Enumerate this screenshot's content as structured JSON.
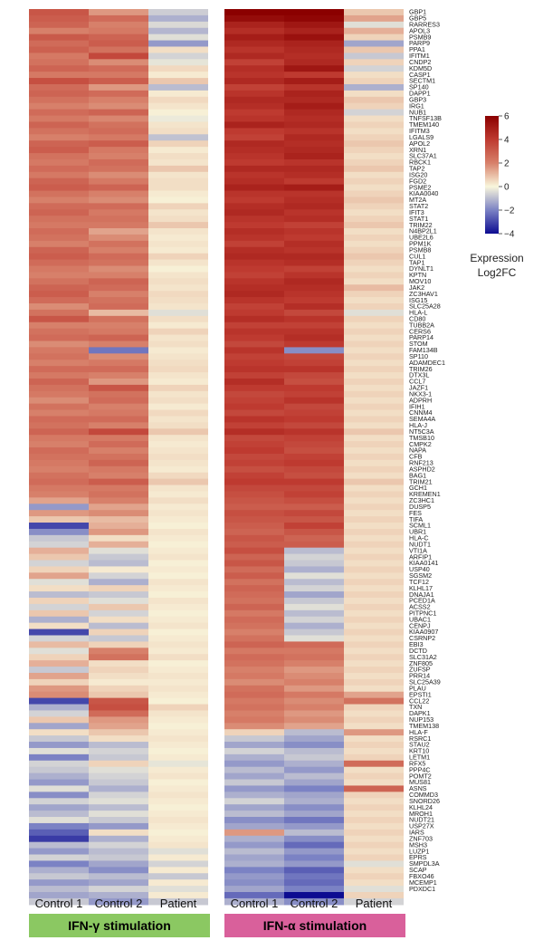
{
  "chart_data": {
    "type": "heatmap",
    "genes": [
      "GBP1",
      "GBP5",
      "RARRES3",
      "APOL3",
      "PSMB9",
      "PARP9",
      "PPA1",
      "IFITM1",
      "CNDP2",
      "KDM5D",
      "CASP1",
      "SECTM1",
      "SP140",
      "DAPP1",
      "GBP3",
      "IRG1",
      "NUB1",
      "TNFSF13B",
      "TMEM140",
      "IFITM3",
      "LGALS9",
      "APOL2",
      "XRN1",
      "SLC37A1",
      "RBCK1",
      "TAP2",
      "ISG20",
      "FGD2",
      "PSME2",
      "KIAA0040",
      "MT2A",
      "STAT2",
      "IFIT3",
      "STAT1",
      "TRIM22",
      "N4BP2L1",
      "UBE2L6",
      "PPM1K",
      "PSMB8",
      "CUL1",
      "TAP1",
      "DYNLT1",
      "KPTN",
      "MOV10",
      "JAK2",
      "ZC3HAV1",
      "ISG15",
      "SLC25A28",
      "HLA-L",
      "CD80",
      "TUBB2A",
      "CERS6",
      "PARP14",
      "STOM",
      "FAM134B",
      "SP110",
      "ADAMDEC1",
      "TRIM26",
      "DTX3L",
      "CCL7",
      "JAZF1",
      "NKX3-1",
      "ADPRH",
      "IFIH1",
      "CNNM4",
      "SEMA4A",
      "HLA-J",
      "NT5C3A",
      "TMSB10",
      "CMPK2",
      "NAPA",
      "CFB",
      "RNF213",
      "ASPHD2",
      "BAG1",
      "TRIM21",
      "GCH1",
      "KREMEN1",
      "ZC3HC1",
      "DUSP5",
      "FES",
      "TIFA",
      "SCML1",
      "UBR1",
      "HLA-C",
      "NUDT1",
      "VTI1A",
      "ARFIP1",
      "KIAA0141",
      "USP40",
      "SGSM2",
      "TCF12",
      "KLHL17",
      "DNAJA1",
      "PCED1A",
      "ACSS2",
      "PITPNC1",
      "UBAC1",
      "CENPJ",
      "KIAA0907",
      "CSRNP2",
      "EBI3",
      "DCTD",
      "SLC31A2",
      "ZNF805",
      "ZUFSP",
      "PRR14",
      "SLC25A39",
      "PLAU",
      "EPSTI1",
      "CCL22",
      "TXN",
      "DAPK1",
      "NUP153",
      "TMEM138",
      "HLA-F",
      "RSRC1",
      "STAU2",
      "KRT10",
      "LETM1",
      "RFX5",
      "PPP4C",
      "POMT2",
      "MUS81",
      "ASNS",
      "COMMD3",
      "SNORD26",
      "KLHL24",
      "MROH1",
      "NUDT21",
      "USP27X",
      "IARS",
      "ZNF703",
      "MSH3",
      "LUZP1",
      "EPRS",
      "SMPDL3A",
      "SCAP",
      "FBXO46",
      "MCEMP1",
      "PDXDC1"
    ],
    "groups": [
      {
        "name": "IFN-γ stimulation",
        "color": "#8bc862",
        "samples": [
          "Control 1",
          "Control 2",
          "Patient"
        ]
      },
      {
        "name": "IFN-α stimulation",
        "color": "#d9609b",
        "samples": [
          "Control 1",
          "Control 2",
          "Patient"
        ]
      }
    ],
    "values_ifn_gamma": [
      [
        3.2,
        1.6,
        -0.7
      ],
      [
        3.0,
        2.6,
        -1.2
      ],
      [
        2.8,
        2.0,
        -0.5
      ],
      [
        2.0,
        2.2,
        -1.1
      ],
      [
        3.1,
        2.8,
        -0.4
      ],
      [
        2.6,
        3.0,
        -1.6
      ],
      [
        2.9,
        2.4,
        0.4
      ],
      [
        2.2,
        3.6,
        -0.6
      ],
      [
        2.4,
        1.8,
        -0.3
      ],
      [
        2.8,
        2.6,
        0.5
      ],
      [
        2.2,
        2.2,
        0.2
      ],
      [
        3.4,
        3.0,
        0.8
      ],
      [
        2.6,
        1.6,
        -1.0
      ],
      [
        2.8,
        2.6,
        0.2
      ],
      [
        2.4,
        2.0,
        0.5
      ],
      [
        2.0,
        1.8,
        0.3
      ],
      [
        2.6,
        2.8,
        0.1
      ],
      [
        2.2,
        1.9,
        -0.2
      ],
      [
        2.8,
        2.4,
        0.3
      ],
      [
        2.4,
        2.6,
        0.4
      ],
      [
        2.0,
        2.2,
        -0.9
      ],
      [
        2.8,
        3.0,
        0.6
      ],
      [
        3.0,
        2.2,
        0.2
      ],
      [
        2.4,
        2.0,
        0.4
      ],
      [
        2.2,
        2.6,
        0.3
      ],
      [
        2.6,
        2.4,
        0.8
      ],
      [
        2.2,
        1.8,
        0.3
      ],
      [
        2.8,
        2.2,
        0.4
      ],
      [
        3.0,
        2.8,
        0.4
      ],
      [
        2.4,
        2.0,
        0.2
      ],
      [
        2.0,
        1.8,
        0.1
      ],
      [
        2.6,
        2.6,
        0.6
      ],
      [
        2.8,
        2.2,
        0.3
      ],
      [
        2.4,
        2.4,
        0.4
      ],
      [
        2.2,
        2.2,
        0.8
      ],
      [
        2.6,
        1.4,
        0.3
      ],
      [
        2.4,
        1.8,
        0.2
      ],
      [
        2.0,
        2.4,
        0.3
      ],
      [
        2.8,
        2.0,
        0.2
      ],
      [
        3.0,
        2.6,
        0.6
      ],
      [
        2.6,
        2.4,
        0.3
      ],
      [
        2.2,
        1.8,
        0.1
      ],
      [
        2.0,
        2.0,
        0.3
      ],
      [
        2.4,
        2.8,
        0.4
      ],
      [
        2.8,
        2.6,
        0.3
      ],
      [
        3.0,
        2.0,
        0.5
      ],
      [
        2.6,
        2.4,
        0.4
      ],
      [
        1.8,
        2.6,
        0.3
      ],
      [
        2.4,
        1.0,
        -0.4
      ],
      [
        3.2,
        2.4,
        0.4
      ],
      [
        2.0,
        2.0,
        0.2
      ],
      [
        2.4,
        2.2,
        0.6
      ],
      [
        2.6,
        2.8,
        0.3
      ],
      [
        1.8,
        2.0,
        0.4
      ],
      [
        2.2,
        -2.2,
        0.2
      ],
      [
        2.4,
        1.8,
        0.3
      ],
      [
        2.0,
        2.2,
        0.4
      ],
      [
        2.6,
        2.6,
        0.5
      ],
      [
        2.2,
        2.0,
        0.3
      ],
      [
        2.8,
        1.6,
        0.2
      ],
      [
        2.4,
        3.2,
        0.6
      ],
      [
        2.2,
        2.4,
        0.3
      ],
      [
        1.8,
        2.6,
        0.4
      ],
      [
        2.4,
        2.0,
        0.2
      ],
      [
        2.0,
        2.2,
        0.5
      ],
      [
        2.6,
        2.6,
        0.3
      ],
      [
        2.4,
        2.0,
        0.4
      ],
      [
        2.8,
        3.6,
        0.8
      ],
      [
        2.2,
        2.2,
        0.3
      ],
      [
        2.0,
        2.6,
        0.2
      ],
      [
        2.6,
        2.0,
        0.3
      ],
      [
        2.4,
        2.4,
        0.4
      ],
      [
        2.2,
        2.8,
        0.3
      ],
      [
        2.0,
        2.2,
        0.2
      ],
      [
        2.4,
        2.0,
        0.5
      ],
      [
        2.6,
        3.0,
        0.8
      ],
      [
        2.2,
        2.2,
        0.3
      ],
      [
        2.0,
        2.4,
        0.2
      ],
      [
        1.4,
        2.0,
        0.4
      ],
      [
        -1.6,
        1.4,
        0.2
      ],
      [
        1.6,
        1.8,
        0.3
      ],
      [
        0.8,
        1.0,
        0.2
      ],
      [
        -3.0,
        1.2,
        0.1
      ],
      [
        -1.8,
        1.6,
        0.3
      ],
      [
        -0.8,
        0.4,
        0.2
      ],
      [
        -0.6,
        1.2,
        0.1
      ],
      [
        1.2,
        -0.4,
        0.2
      ],
      [
        0.8,
        -0.8,
        0.3
      ],
      [
        -0.6,
        -1.0,
        0.1
      ],
      [
        0.6,
        0.2,
        0.2
      ],
      [
        1.4,
        -0.6,
        0.1
      ],
      [
        -0.4,
        -1.2,
        0.3
      ],
      [
        0.4,
        0.6,
        0.2
      ],
      [
        -1.0,
        -0.8,
        0.1
      ],
      [
        0.6,
        -0.4,
        0.3
      ],
      [
        -0.6,
        0.8,
        0.2
      ],
      [
        0.8,
        -0.6,
        0.1
      ],
      [
        -1.2,
        0.4,
        0.2
      ],
      [
        0.4,
        -1.0,
        0.3
      ],
      [
        -3.0,
        0.6,
        0.1
      ],
      [
        -0.6,
        -0.8,
        0.2
      ],
      [
        1.0,
        0.6,
        0.3
      ],
      [
        -0.4,
        2.0,
        0.2
      ],
      [
        0.6,
        2.4,
        0.4
      ],
      [
        1.2,
        0.4,
        0.1
      ],
      [
        -0.8,
        0.6,
        0.2
      ],
      [
        1.4,
        0.4,
        0.3
      ],
      [
        0.6,
        0.2,
        0.2
      ],
      [
        1.6,
        0.6,
        0.3
      ],
      [
        1.8,
        0.8,
        0.2
      ],
      [
        -3.0,
        3.2,
        0.1
      ],
      [
        -1.2,
        3.4,
        0.6
      ],
      [
        -0.6,
        2.6,
        0.3
      ],
      [
        0.8,
        1.6,
        0.2
      ],
      [
        -1.4,
        1.4,
        0.1
      ],
      [
        0.4,
        0.8,
        0.2
      ],
      [
        -0.8,
        0.4,
        0.3
      ],
      [
        -1.6,
        -1.0,
        0.2
      ],
      [
        -0.4,
        -0.6,
        0.1
      ],
      [
        -2.0,
        -0.8,
        0.2
      ],
      [
        -0.6,
        0.6,
        -0.3
      ],
      [
        -0.8,
        -0.4,
        0.2
      ],
      [
        -1.2,
        -0.6,
        0.3
      ],
      [
        -1.6,
        -0.8,
        0.1
      ],
      [
        -0.4,
        -1.2,
        0.2
      ],
      [
        -1.8,
        -0.6,
        0.3
      ],
      [
        -0.6,
        -0.4,
        0.2
      ],
      [
        -1.4,
        -1.0,
        0.1
      ],
      [
        -1.0,
        -0.4,
        0.2
      ],
      [
        -0.4,
        -0.8,
        0.3
      ],
      [
        -2.0,
        -1.6,
        0.2
      ],
      [
        -2.6,
        0.4,
        0.1
      ],
      [
        -3.2,
        -1.2,
        0.2
      ],
      [
        -1.0,
        -0.6,
        0.3
      ],
      [
        -1.6,
        -1.0,
        -0.4
      ],
      [
        -0.6,
        -0.8,
        0.2
      ],
      [
        -2.0,
        -1.4,
        -0.6
      ],
      [
        -1.2,
        -1.8,
        0.2
      ],
      [
        -0.8,
        -1.0,
        -0.8
      ],
      [
        -1.6,
        -1.4,
        0.2
      ],
      [
        -1.0,
        -0.6,
        -0.4
      ],
      [
        -1.4,
        -1.2,
        0.2
      ],
      [
        -0.8,
        -1.6,
        -0.8
      ]
    ],
    "values_ifn_alpha": [
      [
        6.0,
        6.0,
        0.8
      ],
      [
        5.6,
        5.8,
        1.4
      ],
      [
        4.8,
        5.2,
        -0.4
      ],
      [
        4.4,
        4.8,
        1.2
      ],
      [
        5.0,
        5.4,
        0.6
      ],
      [
        4.6,
        4.8,
        -1.4
      ],
      [
        4.2,
        4.6,
        0.8
      ],
      [
        4.6,
        4.4,
        -0.8
      ],
      [
        3.8,
        4.6,
        0.6
      ],
      [
        4.4,
        5.2,
        -0.6
      ],
      [
        4.2,
        4.0,
        0.4
      ],
      [
        4.6,
        5.0,
        0.6
      ],
      [
        3.8,
        4.2,
        -1.2
      ],
      [
        4.2,
        4.8,
        0.4
      ],
      [
        4.6,
        4.6,
        0.8
      ],
      [
        4.4,
        5.0,
        0.6
      ],
      [
        4.0,
        4.6,
        -0.6
      ],
      [
        4.2,
        4.4,
        0.4
      ],
      [
        4.8,
        4.6,
        0.6
      ],
      [
        4.0,
        4.2,
        0.4
      ],
      [
        3.8,
        4.6,
        0.6
      ],
      [
        4.6,
        4.4,
        0.8
      ],
      [
        4.4,
        4.6,
        0.6
      ],
      [
        4.2,
        4.8,
        0.4
      ],
      [
        4.0,
        4.2,
        0.6
      ],
      [
        4.6,
        4.6,
        0.8
      ],
      [
        4.2,
        4.4,
        0.4
      ],
      [
        4.4,
        4.0,
        0.6
      ],
      [
        4.8,
        5.0,
        0.4
      ],
      [
        4.2,
        4.2,
        0.6
      ],
      [
        4.0,
        4.4,
        0.8
      ],
      [
        4.4,
        4.6,
        0.6
      ],
      [
        4.6,
        4.2,
        0.4
      ],
      [
        4.2,
        4.4,
        0.6
      ],
      [
        4.0,
        3.8,
        0.8
      ],
      [
        4.4,
        4.2,
        0.4
      ],
      [
        4.2,
        4.0,
        0.6
      ],
      [
        3.8,
        4.4,
        0.4
      ],
      [
        4.4,
        4.2,
        0.6
      ],
      [
        4.6,
        4.6,
        0.8
      ],
      [
        4.2,
        4.4,
        0.6
      ],
      [
        4.0,
        3.8,
        0.4
      ],
      [
        3.8,
        4.2,
        0.6
      ],
      [
        4.2,
        4.6,
        0.4
      ],
      [
        4.4,
        4.4,
        1.0
      ],
      [
        4.6,
        4.2,
        0.6
      ],
      [
        4.2,
        4.0,
        0.4
      ],
      [
        3.8,
        4.4,
        0.6
      ],
      [
        4.0,
        3.6,
        -0.4
      ],
      [
        4.4,
        4.2,
        0.6
      ],
      [
        3.8,
        3.8,
        0.4
      ],
      [
        4.2,
        4.2,
        0.6
      ],
      [
        4.0,
        4.4,
        0.4
      ],
      [
        3.6,
        4.0,
        0.6
      ],
      [
        4.2,
        -1.8,
        0.4
      ],
      [
        3.8,
        3.6,
        0.6
      ],
      [
        4.0,
        3.8,
        0.4
      ],
      [
        4.2,
        4.2,
        0.6
      ],
      [
        3.8,
        3.6,
        0.4
      ],
      [
        4.4,
        3.4,
        0.6
      ],
      [
        4.0,
        4.0,
        0.4
      ],
      [
        3.6,
        3.8,
        0.6
      ],
      [
        3.8,
        4.2,
        0.4
      ],
      [
        4.0,
        3.6,
        0.6
      ],
      [
        3.6,
        3.8,
        0.4
      ],
      [
        4.2,
        4.0,
        0.6
      ],
      [
        3.8,
        3.6,
        0.4
      ],
      [
        4.4,
        4.2,
        0.8
      ],
      [
        3.6,
        3.8,
        0.4
      ],
      [
        3.8,
        3.6,
        0.6
      ],
      [
        4.0,
        3.4,
        0.4
      ],
      [
        3.6,
        3.8,
        0.6
      ],
      [
        3.8,
        4.0,
        0.4
      ],
      [
        3.4,
        3.6,
        0.6
      ],
      [
        3.8,
        3.4,
        0.4
      ],
      [
        4.0,
        4.0,
        0.8
      ],
      [
        3.6,
        3.6,
        0.4
      ],
      [
        3.4,
        3.8,
        0.6
      ],
      [
        3.2,
        3.4,
        0.4
      ],
      [
        3.0,
        3.0,
        0.6
      ],
      [
        3.4,
        3.6,
        0.4
      ],
      [
        3.2,
        3.2,
        0.6
      ],
      [
        3.0,
        3.8,
        0.4
      ],
      [
        2.8,
        3.2,
        0.6
      ],
      [
        3.2,
        2.8,
        0.4
      ],
      [
        3.0,
        3.0,
        0.6
      ],
      [
        3.4,
        -1.0,
        0.4
      ],
      [
        2.8,
        -0.6,
        0.6
      ],
      [
        3.2,
        -0.8,
        0.4
      ],
      [
        2.6,
        -1.2,
        0.6
      ],
      [
        3.0,
        -0.4,
        0.4
      ],
      [
        2.4,
        -1.0,
        0.6
      ],
      [
        2.8,
        -0.6,
        0.4
      ],
      [
        2.6,
        -1.4,
        0.6
      ],
      [
        2.4,
        -0.8,
        0.4
      ],
      [
        2.8,
        -0.4,
        0.6
      ],
      [
        2.2,
        -1.0,
        0.4
      ],
      [
        2.6,
        -0.6,
        0.6
      ],
      [
        2.4,
        -1.2,
        0.4
      ],
      [
        2.0,
        -0.8,
        0.6
      ],
      [
        2.4,
        -0.4,
        0.4
      ],
      [
        2.8,
        2.6,
        0.6
      ],
      [
        2.2,
        2.2,
        0.4
      ],
      [
        2.6,
        2.4,
        0.6
      ],
      [
        2.4,
        2.0,
        0.4
      ],
      [
        2.0,
        1.6,
        0.6
      ],
      [
        2.2,
        1.8,
        0.4
      ],
      [
        1.8,
        2.0,
        0.6
      ],
      [
        2.4,
        1.6,
        0.4
      ],
      [
        2.6,
        2.2,
        1.4
      ],
      [
        2.2,
        1.8,
        2.4
      ],
      [
        2.4,
        2.0,
        0.6
      ],
      [
        2.0,
        1.6,
        0.4
      ],
      [
        2.2,
        1.8,
        0.6
      ],
      [
        1.8,
        1.4,
        0.4
      ],
      [
        0.6,
        -1.0,
        1.6
      ],
      [
        -0.8,
        -1.4,
        0.4
      ],
      [
        -1.4,
        -1.8,
        0.6
      ],
      [
        -0.6,
        -1.0,
        0.4
      ],
      [
        -1.2,
        -0.8,
        0.6
      ],
      [
        -1.6,
        -1.2,
        2.6
      ],
      [
        -1.0,
        -1.6,
        0.4
      ],
      [
        -1.4,
        -1.0,
        0.6
      ],
      [
        -0.8,
        -1.4,
        0.4
      ],
      [
        -1.6,
        -2.0,
        2.8
      ],
      [
        -1.2,
        -1.4,
        0.6
      ],
      [
        -0.6,
        -1.2,
        0.4
      ],
      [
        -1.4,
        -1.8,
        0.6
      ],
      [
        -1.0,
        -1.4,
        0.4
      ],
      [
        -1.8,
        -2.2,
        0.6
      ],
      [
        -1.4,
        -1.6,
        0.4
      ],
      [
        1.6,
        -1.0,
        0.6
      ],
      [
        -1.2,
        -1.8,
        0.4
      ],
      [
        -1.6,
        -2.4,
        0.6
      ],
      [
        -1.0,
        -1.6,
        0.4
      ],
      [
        -1.4,
        -2.0,
        0.6
      ],
      [
        -1.2,
        -1.6,
        -0.4
      ],
      [
        -2.0,
        -2.6,
        0.4
      ],
      [
        -1.6,
        -2.2,
        0.6
      ],
      [
        -1.8,
        -2.4,
        0.4
      ],
      [
        -1.4,
        -2.0,
        -0.4
      ],
      [
        -2.4,
        -4.0,
        0.6
      ],
      [
        -1.2,
        -1.8,
        -0.6
      ]
    ],
    "color_scale": {
      "min": -4,
      "max": 6,
      "ticks": [
        6,
        4,
        2,
        0,
        -2,
        -4
      ],
      "stops": [
        {
          "value": -4,
          "color": "#0d0c91"
        },
        {
          "value": -2,
          "color": "#7b82c4"
        },
        {
          "value": 0,
          "color": "#f9f6dc"
        },
        {
          "value": 2,
          "color": "#d7806a"
        },
        {
          "value": 4,
          "color": "#be3a30"
        },
        {
          "value": 6,
          "color": "#8b0000"
        }
      ]
    },
    "legend_title": [
      "Expression",
      "Log2FC"
    ]
  }
}
